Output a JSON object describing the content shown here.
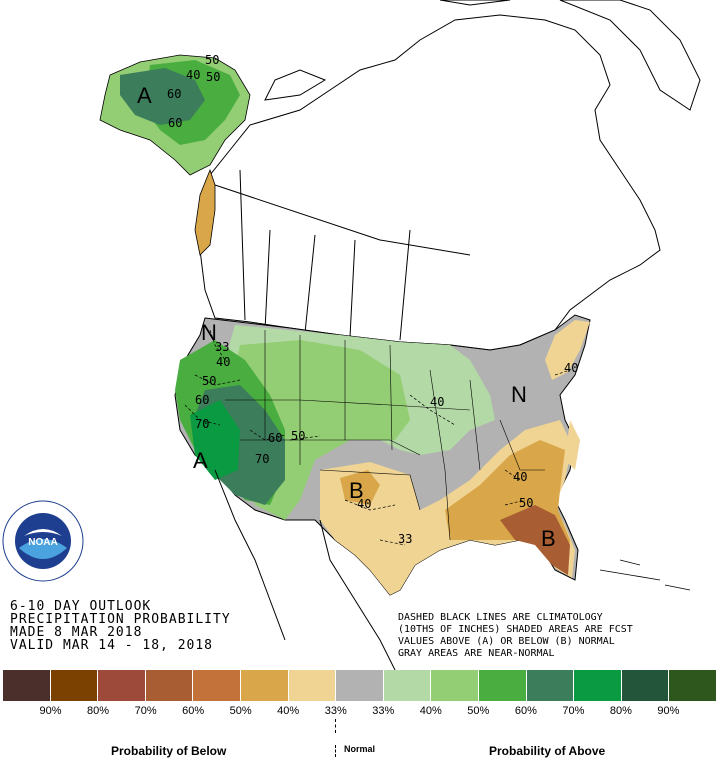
{
  "outlook": {
    "line1": "6-10 DAY OUTLOOK",
    "line2": "PRECIPITATION PROBABILITY",
    "line3": "MADE  8 MAR 2018",
    "line4": "VALID  MAR 14 - 18, 2018"
  },
  "note": {
    "line1": "DASHED BLACK LINES ARE CLIMATOLOGY",
    "line2": "(10THS OF INCHES) SHADED AREAS ARE FCST",
    "line3": "VALUES ABOVE (A) OR BELOW (B) NORMAL",
    "line4": "GRAY AREAS ARE NEAR-NORMAL"
  },
  "logo": {
    "text": "NOAA",
    "ring_text": "NATIONAL OCEANIC AND ATMOSPHERIC ADMINISTRATION · U.S. DEPARTMENT OF COMMERCE ·"
  },
  "map_labels": {
    "big": [
      {
        "id": "alaska-a",
        "text": "A"
      },
      {
        "id": "california-a",
        "text": "A"
      },
      {
        "id": "texas-b",
        "text": "B"
      },
      {
        "id": "florida-b",
        "text": "B"
      },
      {
        "id": "northwest-n",
        "text": "N"
      },
      {
        "id": "northeast-n",
        "text": "N"
      }
    ],
    "contours": [
      {
        "id": "ak-50a",
        "text": "50"
      },
      {
        "id": "ak-40",
        "text": "40"
      },
      {
        "id": "ak-50",
        "text": "50"
      },
      {
        "id": "ak-60a",
        "text": "60"
      },
      {
        "id": "ak-60b",
        "text": "60"
      },
      {
        "id": "nw-33",
        "text": "33"
      },
      {
        "id": "nw-40",
        "text": "40"
      },
      {
        "id": "w-50",
        "text": "50"
      },
      {
        "id": "w-60a",
        "text": "60"
      },
      {
        "id": "w-70a",
        "text": "70"
      },
      {
        "id": "w-60b",
        "text": "60"
      },
      {
        "id": "w-50b",
        "text": "50"
      },
      {
        "id": "w-70b",
        "text": "70"
      },
      {
        "id": "mw-40",
        "text": "40"
      },
      {
        "id": "tx-40",
        "text": "40"
      },
      {
        "id": "tx-33",
        "text": "33"
      },
      {
        "id": "se-40",
        "text": "40"
      },
      {
        "id": "se-50",
        "text": "50"
      },
      {
        "id": "ne-40",
        "text": "40"
      }
    ]
  },
  "legend": {
    "colors": [
      "#4a2f2b",
      "#7b4100",
      "#9d4a3a",
      "#a85e32",
      "#c3733a",
      "#d9a74a",
      "#f0d494",
      "#b2b2b2",
      "#b3d9a6",
      "#93cd74",
      "#4aad40",
      "#3c7d5b",
      "#0a9a42",
      "#22553a",
      "#2d571c"
    ],
    "labels": [
      "90%",
      "80%",
      "70%",
      "60%",
      "50%",
      "40%",
      "33%",
      "33%",
      "40%",
      "50%",
      "60%",
      "70%",
      "80%",
      "90%"
    ],
    "below_title": "Probability of Below",
    "normal_title": "Normal",
    "above_title": "Probability of Above"
  }
}
